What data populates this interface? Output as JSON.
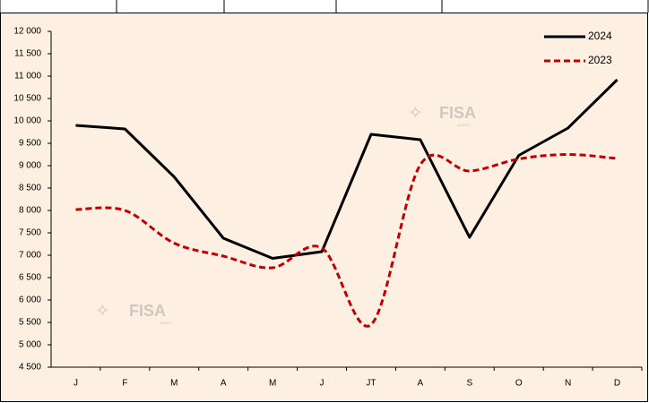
{
  "chart_data": {
    "type": "line",
    "categories": [
      "J",
      "F",
      "M",
      "A",
      "M",
      "J",
      "JT",
      "A",
      "S",
      "O",
      "N",
      "D"
    ],
    "series": [
      {
        "name": "2024",
        "color": "#000000",
        "dash": false,
        "smooth": false,
        "values": [
          9900,
          9820,
          8750,
          7380,
          6930,
          7080,
          9700,
          9580,
          7400,
          9230,
          9840,
          10920
        ]
      },
      {
        "name": "2023",
        "color": "#c00000",
        "dash": true,
        "smooth": true,
        "values": [
          8020,
          8000,
          7270,
          6980,
          6720,
          7160,
          5450,
          9020,
          8880,
          9150,
          9250,
          9160
        ]
      }
    ],
    "ylim": [
      4500,
      12000
    ],
    "yticks": [
      {
        "value": 4500,
        "label": "4 500"
      },
      {
        "value": 5000,
        "label": "5 000"
      },
      {
        "value": 5500,
        "label": "5 500"
      },
      {
        "value": 6000,
        "label": "6 000"
      },
      {
        "value": 6500,
        "label": "6 500"
      },
      {
        "value": 7000,
        "label": "7 000"
      },
      {
        "value": 7500,
        "label": "7 500"
      },
      {
        "value": 8000,
        "label": "8 000"
      },
      {
        "value": 8500,
        "label": "8 500"
      },
      {
        "value": 9000,
        "label": "9 000"
      },
      {
        "value": 9500,
        "label": "9 500"
      },
      {
        "value": 10000,
        "label": "10 000"
      },
      {
        "value": 10500,
        "label": "10 500"
      },
      {
        "value": 11000,
        "label": "11 000"
      },
      {
        "value": 11500,
        "label": "11 500"
      },
      {
        "value": 12000,
        "label": "12 000"
      }
    ],
    "grid": false,
    "legend": "top-right",
    "watermark": "FISA",
    "watermark_sub": "MAROC"
  }
}
